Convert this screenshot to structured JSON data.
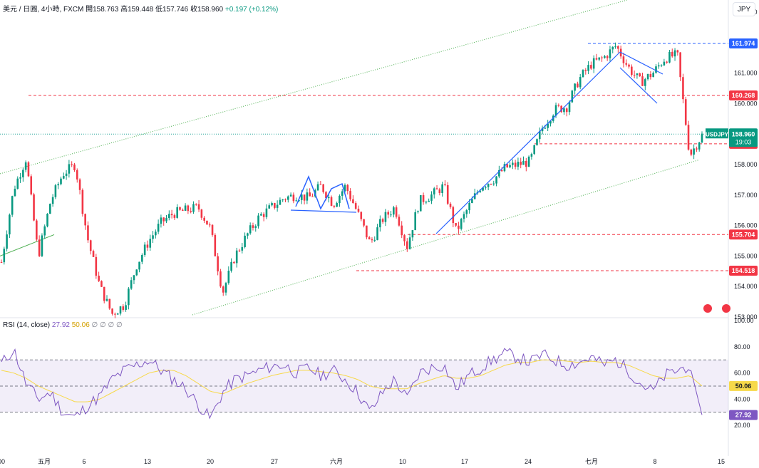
{
  "header": {
    "symbol": "美元 / 日圓, 4小時, FXCM",
    "open_label": "開",
    "open": "158.763",
    "high_label": "高",
    "high": "159.448",
    "low_label": "低",
    "low": "157.746",
    "close_label": "收",
    "close": "158.960",
    "change": "+0.197 (+0.12%)"
  },
  "currency_button": "JPY",
  "rsi_header": {
    "label": "RSI (14, close)",
    "rsi": "27.92",
    "ma": "50.06",
    "extra": "∅ ∅ ∅ ∅"
  },
  "colors": {
    "up": "#089981",
    "down": "#f23645",
    "rsi": "#7e57c2",
    "rsi_ma": "#f7d94a",
    "trend": "#2962ff",
    "level": "#f23645"
  },
  "chart_data": {
    "type": "candlestick",
    "symbol": "USDJPY",
    "price_axis": {
      "ticks": [
        "163.000",
        "162.000",
        "161.000",
        "160.000",
        "158.000",
        "157.000",
        "156.000",
        "155.000",
        "154.000",
        "153.000"
      ],
      "range": [
        153.0,
        163.4
      ]
    },
    "time_axis": {
      "ticks": [
        "00",
        "五月",
        "6",
        "13",
        "20",
        "27",
        "六月",
        "10",
        "17",
        "24",
        "七月",
        "8",
        "15"
      ]
    },
    "horizontal_levels": [
      "160.268",
      "155.704",
      "154.518",
      "158.682"
    ],
    "last_price": {
      "label": "USDJPY",
      "price": "158.960",
      "countdown": "19:03"
    },
    "high_marker": "161.974",
    "candles_close_path": [
      154.8,
      157.2,
      158.2,
      155.0,
      156.8,
      157.7,
      158.0,
      155.6,
      154.0,
      153.1,
      153.4,
      154.7,
      155.5,
      156.1,
      156.4,
      156.5,
      156.6,
      155.9,
      153.8,
      155.0,
      155.7,
      156.3,
      156.6,
      156.9,
      157.0,
      156.9,
      157.3,
      156.7,
      157.3,
      156.4,
      155.4,
      156.2,
      156.6,
      155.3,
      156.8,
      157.0,
      157.3,
      155.8,
      156.6,
      157.3,
      157.5,
      157.9,
      158.0,
      158.1,
      159.2,
      159.8,
      159.9,
      160.8,
      161.3,
      161.5,
      161.9,
      161.2,
      160.7,
      161.0,
      161.5,
      161.6,
      158.3,
      158.96
    ],
    "rsi": {
      "label": "RSI (14, close)",
      "ticks": [
        "100.00",
        "80.00",
        "60.00",
        "40.00",
        "20.00"
      ],
      "overbought": 70,
      "oversold": 30,
      "middle": 50,
      "last_rsi": "27.92",
      "last_ma": "50.06",
      "values": [
        67,
        78,
        52,
        40,
        45,
        30,
        26,
        35,
        42,
        55,
        62,
        66,
        70,
        62,
        55,
        48,
        36,
        25,
        45,
        55,
        58,
        62,
        65,
        66,
        60,
        64,
        58,
        62,
        55,
        45,
        30,
        45,
        55,
        40,
        60,
        64,
        66,
        48,
        58,
        64,
        70,
        75,
        72,
        68,
        74,
        70,
        66,
        68,
        72,
        66,
        70,
        62,
        52,
        46,
        58,
        62,
        66,
        28
      ],
      "ma_values": [
        62,
        60,
        56,
        50,
        46,
        42,
        38,
        38,
        40,
        45,
        50,
        55,
        60,
        62,
        62,
        58,
        52,
        46,
        44,
        48,
        52,
        55,
        58,
        60,
        62,
        62,
        61,
        60,
        58,
        55,
        50,
        48,
        48,
        48,
        52,
        55,
        58,
        56,
        56,
        58,
        62,
        66,
        68,
        68,
        70,
        70,
        69,
        68,
        69,
        68,
        68,
        66,
        62,
        58,
        56,
        56,
        58,
        50.06
      ]
    }
  }
}
